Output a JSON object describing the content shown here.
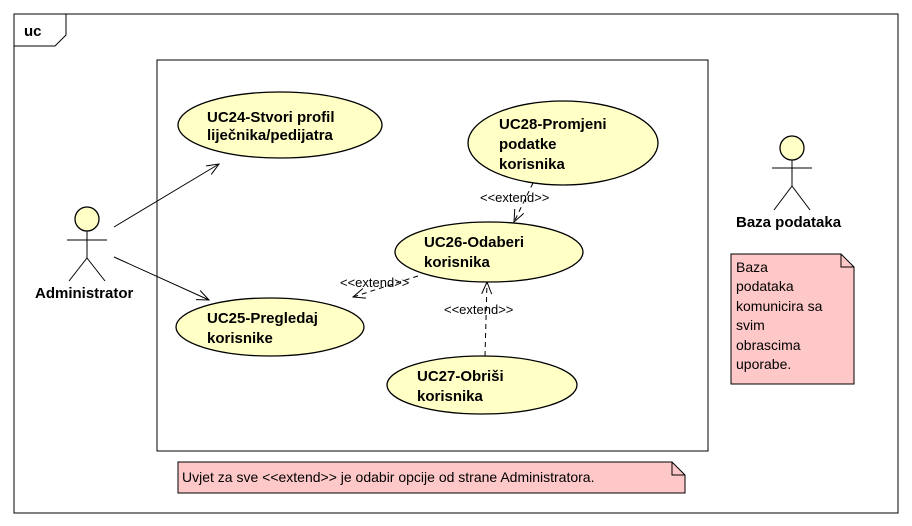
{
  "frame": {
    "label": "uc"
  },
  "use_cases": {
    "uc24": {
      "lines": [
        "UC24-Stvori profil",
        "liječnika/pedijatra"
      ]
    },
    "uc25": {
      "lines": [
        "UC25-Pregledaj",
        "korisnike"
      ]
    },
    "uc26": {
      "lines": [
        "UC26-Odaberi",
        "korisnika"
      ]
    },
    "uc27": {
      "lines": [
        "UC27-Obriši",
        "korisnika"
      ]
    },
    "uc28": {
      "lines": [
        "UC28-Promjeni",
        "podatke",
        "korisnika"
      ]
    }
  },
  "actors": {
    "administrator": {
      "name": "Administrator"
    },
    "database": {
      "name": "Baza podataka"
    }
  },
  "relations": {
    "extend_28_26": "<<extend>>",
    "extend_26_25": "<<extend>>",
    "extend_27_26": "<<extend>>"
  },
  "notes": {
    "database_note": {
      "lines": [
        "Baza",
        "podataka",
        "komunicira sa",
        "svim",
        "obrascima",
        "uporabe."
      ]
    },
    "condition_note": {
      "text": "Uvjet za sve <<extend>> je odabir opcije od strane Administratora."
    }
  },
  "colors": {
    "use_case_fill": "#ffffc6",
    "actor_head_fill": "#ffffc6",
    "note_fill": "#ffc8c8",
    "stroke": "#000000"
  }
}
